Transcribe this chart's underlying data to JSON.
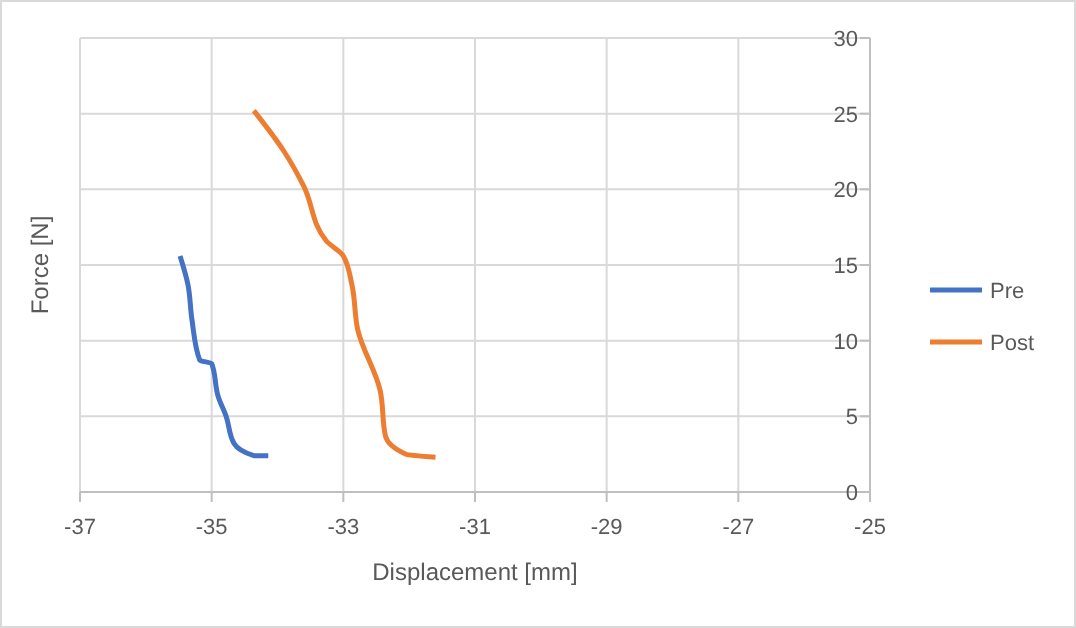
{
  "chart_data": {
    "type": "line",
    "xlabel": "Displacement [mm]",
    "ylabel": "Force [N]",
    "xlim": [
      -37,
      -25
    ],
    "xticks": [
      -37,
      -35,
      -33,
      -31,
      -29,
      -27,
      -25
    ],
    "ylim": [
      0,
      30
    ],
    "yticks": [
      0,
      5,
      10,
      15,
      20,
      25,
      30
    ],
    "grid": true,
    "legend": "right",
    "marker": "none",
    "series": [
      {
        "name": "Pre",
        "color": "#4472c4",
        "x": [
          -35.48,
          -35.36,
          -35.3,
          -35.18,
          -35.0,
          -34.9,
          -34.78,
          -34.66,
          -34.36,
          -34.14
        ],
        "values": [
          15.6,
          13.7,
          11.4,
          8.7,
          8.5,
          6.3,
          5.0,
          3.2,
          2.4,
          2.4
        ]
      },
      {
        "name": "Post",
        "color": "#ed7d31",
        "x": [
          -34.36,
          -33.9,
          -33.6,
          -33.26,
          -33.0,
          -32.87,
          -32.78,
          -32.44,
          -32.36,
          -32.05,
          -31.6
        ],
        "values": [
          25.2,
          22.5,
          20.2,
          16.6,
          15.6,
          13.7,
          10.7,
          6.7,
          3.7,
          2.5,
          2.3
        ]
      }
    ]
  }
}
